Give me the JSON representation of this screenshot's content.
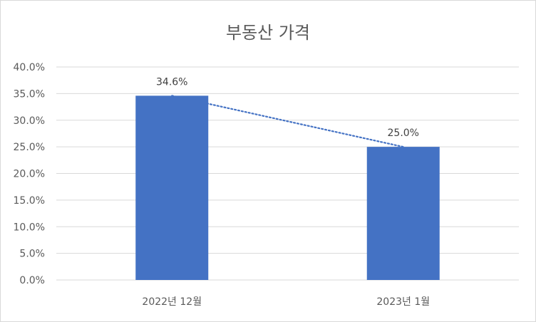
{
  "chart_data": {
    "type": "bar",
    "title": "부동산 가격",
    "categories": [
      "2022년 12월",
      "2023년 1월"
    ],
    "series": [
      {
        "values": [
          0.346,
          0.25
        ],
        "color": "#4472c4"
      }
    ],
    "data_labels": [
      "34.6%",
      "25.0%"
    ],
    "ylim": [
      0,
      0.4
    ],
    "y_ticks": [
      0,
      0.05,
      0.1,
      0.15,
      0.2,
      0.25,
      0.3,
      0.35,
      0.4
    ],
    "y_tick_labels": [
      "0.0%",
      "5.0%",
      "10.0%",
      "15.0%",
      "20.0%",
      "25.0%",
      "30.0%",
      "35.0%",
      "40.0%"
    ],
    "trendline": {
      "style": "dotted",
      "color": "#4472c4"
    },
    "grid": true,
    "legend": "none"
  }
}
